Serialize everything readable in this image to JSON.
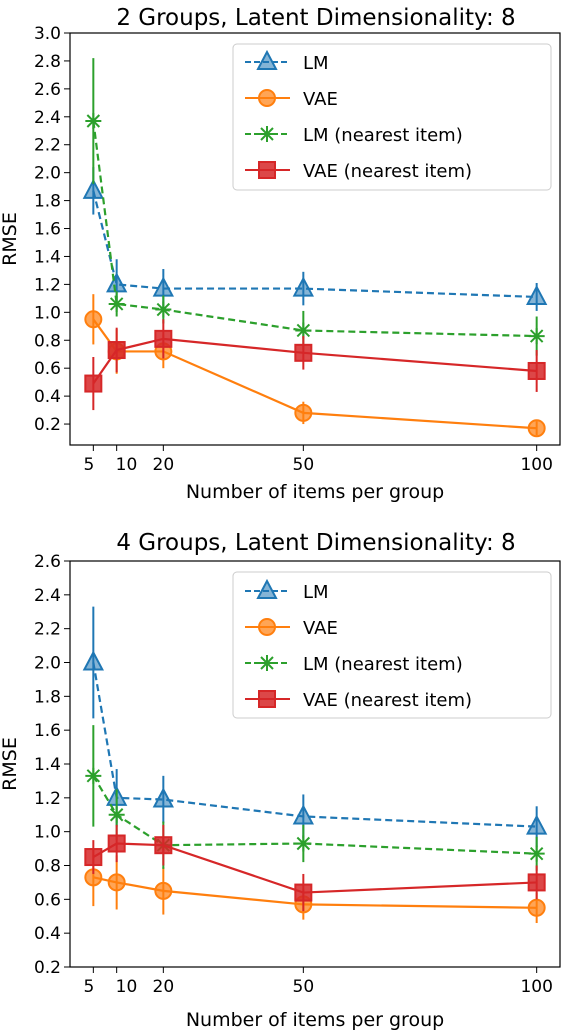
{
  "chart_data": [
    {
      "type": "line",
      "title": "2 Groups, Latent Dimensionality: 8",
      "xlabel": "Number of items per group",
      "ylabel": "RMSE",
      "x": [
        5,
        10,
        20,
        50,
        100
      ],
      "xticks": [
        "5",
        "10",
        "20",
        "50",
        "100"
      ],
      "ylim": [
        0.05,
        3.0
      ],
      "yticks": [
        "0.2",
        "0.4",
        "0.6",
        "0.8",
        "1.0",
        "1.2",
        "1.4",
        "1.6",
        "1.8",
        "2.0",
        "2.2",
        "2.4",
        "2.6",
        "2.8",
        "3.0"
      ],
      "legend_position": "top-right",
      "grid": false,
      "series": [
        {
          "name": "LM",
          "color": "#1f77b4",
          "marker": "triangle",
          "dashed": true,
          "values": [
            1.87,
            1.2,
            1.17,
            1.17,
            1.11
          ],
          "err": [
            0.17,
            0.18,
            0.14,
            0.12,
            0.1
          ]
        },
        {
          "name": "VAE",
          "color": "#ff7f0e",
          "marker": "circle",
          "dashed": false,
          "values": [
            0.95,
            0.72,
            0.72,
            0.28,
            0.17
          ],
          "err": [
            0.18,
            0.16,
            0.12,
            0.08,
            0.05
          ]
        },
        {
          "name": "LM (nearest item)",
          "color": "#2ca02c",
          "marker": "x",
          "dashed": true,
          "values": [
            2.37,
            1.06,
            1.02,
            0.87,
            0.83
          ],
          "err": [
            0.45,
            0.09,
            0.1,
            0.14,
            0.14
          ]
        },
        {
          "name": "VAE (nearest item)",
          "color": "#d62728",
          "marker": "square",
          "dashed": false,
          "values": [
            0.49,
            0.73,
            0.81,
            0.71,
            0.58
          ],
          "err": [
            0.19,
            0.16,
            0.14,
            0.12,
            0.15
          ]
        }
      ]
    },
    {
      "type": "line",
      "title": "4 Groups, Latent Dimensionality: 8",
      "xlabel": "Number of items per group",
      "ylabel": "RMSE",
      "x": [
        5,
        10,
        20,
        50,
        100
      ],
      "xticks": [
        "5",
        "10",
        "20",
        "50",
        "100"
      ],
      "ylim": [
        0.2,
        2.6
      ],
      "yticks": [
        "0.2",
        "0.4",
        "0.6",
        "0.8",
        "1.0",
        "1.2",
        "1.4",
        "1.6",
        "1.8",
        "2.0",
        "2.2",
        "2.4",
        "2.6"
      ],
      "legend_position": "top-right",
      "grid": false,
      "series": [
        {
          "name": "LM",
          "color": "#1f77b4",
          "marker": "triangle",
          "dashed": true,
          "values": [
            2.0,
            1.2,
            1.19,
            1.09,
            1.03
          ],
          "err": [
            0.33,
            0.17,
            0.14,
            0.13,
            0.12
          ]
        },
        {
          "name": "VAE",
          "color": "#ff7f0e",
          "marker": "circle",
          "dashed": false,
          "values": [
            0.73,
            0.7,
            0.65,
            0.57,
            0.55
          ],
          "err": [
            0.17,
            0.16,
            0.14,
            0.09,
            0.09
          ]
        },
        {
          "name": "LM (nearest item)",
          "color": "#2ca02c",
          "marker": "x",
          "dashed": true,
          "values": [
            1.33,
            1.1,
            0.92,
            0.93,
            0.87
          ],
          "err": [
            0.3,
            0.15,
            0.14,
            0.11,
            0.1
          ]
        },
        {
          "name": "VAE (nearest item)",
          "color": "#d62728",
          "marker": "square",
          "dashed": false,
          "values": [
            0.85,
            0.93,
            0.92,
            0.64,
            0.7
          ],
          "err": [
            0.1,
            0.11,
            0.12,
            0.11,
            0.1
          ]
        }
      ]
    }
  ]
}
